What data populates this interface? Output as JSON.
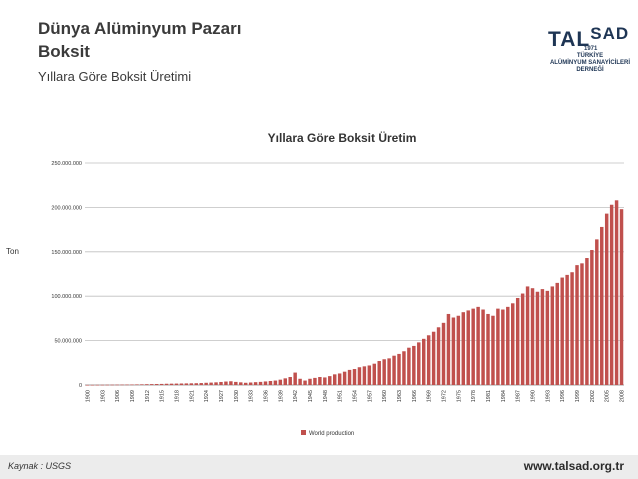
{
  "header": {
    "title": "Dünya Alüminyum Pazarı",
    "subtitle": "Boksit",
    "section": "Yıllara Göre Boksit Üretimi"
  },
  "logo": {
    "brand_left": "TAL",
    "brand_right": "SAD",
    "year": "1971",
    "line1": "TÜRKİYE",
    "line2": "ALÜMİNYUM SANAYİCİLERİ",
    "line3": "DERNEĞİ"
  },
  "side_label": "Ton",
  "footer": {
    "source": "Kaynak : USGS",
    "url": "www.talsad.org.tr"
  },
  "colors": {
    "bar": "#c0504d",
    "grid": "#bfbfbf",
    "footer_bg": "#ececec"
  },
  "chart_data": {
    "type": "bar",
    "title": "Yıllara Göre Boksit Üretim",
    "xlabel": "",
    "ylabel": "Ton",
    "ylim": [
      0,
      250000000
    ],
    "yticks": [
      0,
      50000000,
      100000000,
      150000000,
      200000000,
      250000000
    ],
    "ytick_labels": [
      "0",
      "50.000.000",
      "100.000.000",
      "150.000.000",
      "200.000.000",
      "250.000.000"
    ],
    "grid": true,
    "legend_position": "bottom-center",
    "xtick_labels": [
      "1900",
      "1903",
      "1906",
      "1909",
      "1912",
      "1915",
      "1918",
      "1921",
      "1924",
      "1927",
      "1930",
      "1933",
      "1936",
      "1939",
      "1942",
      "1945",
      "1948",
      "1951",
      "1954",
      "1957",
      "1960",
      "1963",
      "1966",
      "1969",
      "1972",
      "1975",
      "1978",
      "1981",
      "1984",
      "1987",
      "1990",
      "1993",
      "1996",
      "1999",
      "2002",
      "2005",
      "2008"
    ],
    "series": [
      {
        "name": "World production",
        "start_year": 1900,
        "values": [
          100000,
          150000,
          200000,
          250000,
          300000,
          350000,
          400000,
          450000,
          500000,
          550000,
          650000,
          750000,
          900000,
          1000000,
          1100000,
          1200000,
          1400000,
          1500000,
          1600000,
          1700000,
          1800000,
          1900000,
          2000000,
          2200000,
          2500000,
          2700000,
          3000000,
          3400000,
          3900000,
          4200000,
          3500000,
          3000000,
          2500000,
          2800000,
          3200000,
          3500000,
          4000000,
          4500000,
          5000000,
          6000000,
          7500000,
          9000000,
          14000000,
          7000000,
          5000000,
          7000000,
          8000000,
          9000000,
          8500000,
          10000000,
          12000000,
          13000000,
          15000000,
          17000000,
          18000000,
          20000000,
          21000000,
          22000000,
          24000000,
          27000000,
          29000000,
          30000000,
          33000000,
          35000000,
          38000000,
          42000000,
          44000000,
          48000000,
          52000000,
          56000000,
          60000000,
          65000000,
          70000000,
          80000000,
          76000000,
          78000000,
          82000000,
          84000000,
          86000000,
          88000000,
          85000000,
          80000000,
          78000000,
          86000000,
          85000000,
          88000000,
          92000000,
          98000000,
          103000000,
          111000000,
          109000000,
          105000000,
          108000000,
          106000000,
          111000000,
          115000000,
          121000000,
          124000000,
          127000000,
          135000000,
          137000000,
          143000000,
          152000000,
          164000000,
          178000000,
          193000000,
          203000000,
          208000000,
          198000000
        ]
      }
    ]
  }
}
